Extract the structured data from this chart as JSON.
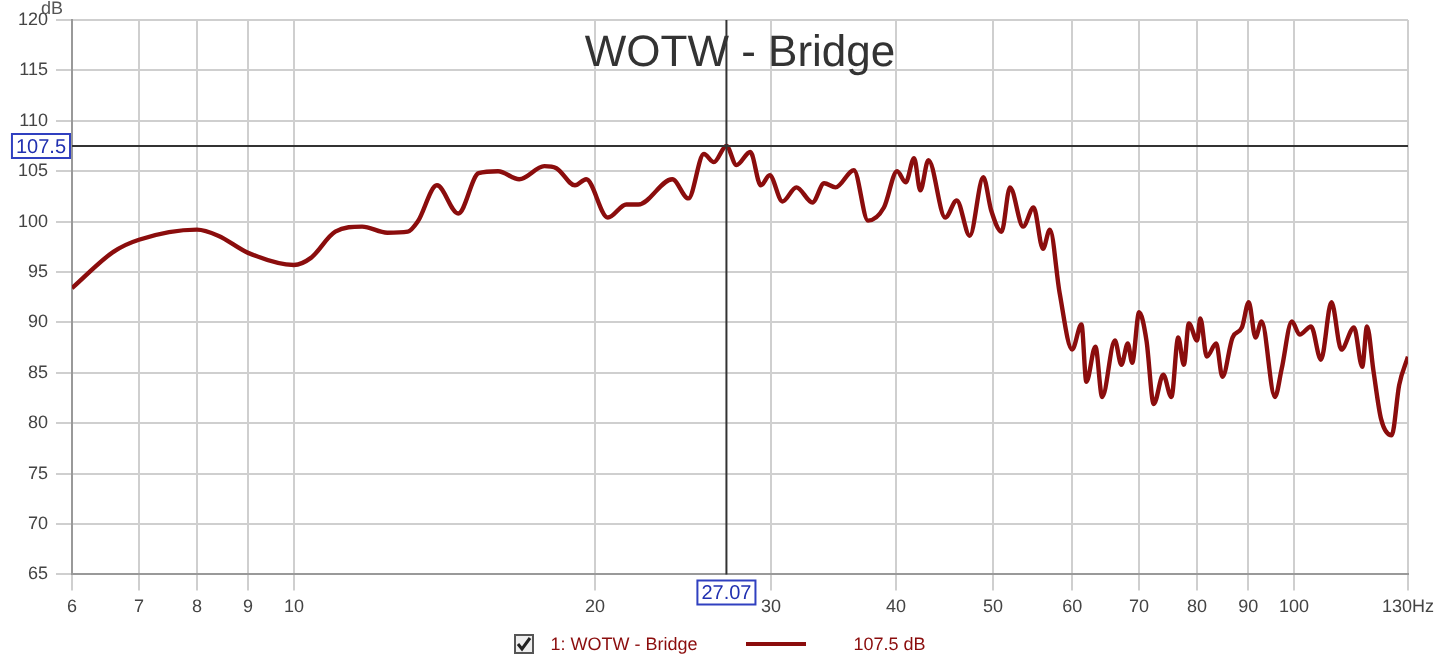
{
  "chart_data": {
    "type": "line",
    "title": "WOTW - Bridge",
    "ylabel": "dB",
    "x": [
      6,
      6.6,
      7.0,
      8.0,
      8.4,
      9.0,
      10,
      10.4,
      11.0,
      11.7,
      12.4,
      13.0,
      13.3,
      13.9,
      14.6,
      15.3,
      16.0,
      16.8,
      17.8,
      18.3,
      19.1,
      19.6,
      20.6,
      21.5,
      22.1,
      23.9,
      24.8,
      25.7,
      26.3,
      27.07,
      27.7,
      28.6,
      29.3,
      29.9,
      30.8,
      31.8,
      33.0,
      33.9,
      34.8,
      36.3,
      37.5,
      38.9,
      40.1,
      40.9,
      41.7,
      42.3,
      43.1,
      44.8,
      46.0,
      47.4,
      48.9,
      49.8,
      51.0,
      52.0,
      53.6,
      54.9,
      56.1,
      57.0,
      58.3,
      60,
      61.3,
      62.0,
      63.3,
      64.3,
      66.2,
      67.2,
      68.2,
      68.9,
      70,
      71.2,
      72.4,
      74.0,
      75.4,
      76.6,
      77.6,
      78.5,
      80,
      80.6,
      81.8,
      83.6,
      84.8,
      86.8,
      88.7,
      90.1,
      91.5,
      92.8,
      95.7,
      97.2,
      99.5,
      101.3,
      104.0,
      106.4,
      109.0,
      111.5,
      114.8,
      117.0,
      118.3,
      120.1,
      122.2,
      125.2,
      127.4,
      130
    ],
    "series": [
      {
        "name": "1: WOTW - Bridge",
        "color": "#8b0d0d",
        "values": [
          93.4,
          97.0,
          98.2,
          99.2,
          98.6,
          96.9,
          95.7,
          96.4,
          99.0,
          99.5,
          98.9,
          99.0,
          100.0,
          103.6,
          100.8,
          104.8,
          105.0,
          104.2,
          105.5,
          105.3,
          103.6,
          104.2,
          100.4,
          101.7,
          101.7,
          104.2,
          102.3,
          106.7,
          105.9,
          107.5,
          105.6,
          106.9,
          103.6,
          104.6,
          102.0,
          103.4,
          101.9,
          103.8,
          103.4,
          105.1,
          100.1,
          101.4,
          105.0,
          103.9,
          106.3,
          103.1,
          106.1,
          100.4,
          102.1,
          98.6,
          104.4,
          101.1,
          99.0,
          103.4,
          99.5,
          101.4,
          97.3,
          99.2,
          92.9,
          87.3,
          89.8,
          84.1,
          87.6,
          82.6,
          88.2,
          85.8,
          87.9,
          86.0,
          91.0,
          88.2,
          81.9,
          84.8,
          82.6,
          88.5,
          85.8,
          89.9,
          88.2,
          90.4,
          86.6,
          87.9,
          84.6,
          88.5,
          89.5,
          92.0,
          88.5,
          90.1,
          82.6,
          85.4,
          90.1,
          88.8,
          89.6,
          86.3,
          92.0,
          87.3,
          89.5,
          85.6,
          89.6,
          85.1,
          80.4,
          78.8,
          83.8,
          86.6
        ]
      }
    ],
    "log": "x",
    "xlim": [
      6,
      130
    ],
    "xticks": [
      6,
      7,
      8,
      9,
      10,
      20,
      30,
      40,
      50,
      60,
      70,
      80,
      90,
      100,
      {
        "value": 130,
        "label": "130Hz"
      }
    ],
    "ylim": [
      65,
      120
    ],
    "yticks": [
      65,
      70,
      75,
      80,
      85,
      90,
      95,
      100,
      105,
      110,
      115,
      120
    ],
    "grid": true,
    "legend": "bottom",
    "line_style": "solid",
    "marker": "none",
    "ref_lines": [
      {
        "axis": "x",
        "value": 27.07,
        "label": "27.07",
        "color": "#333333"
      },
      {
        "axis": "y",
        "value": 107.5,
        "label": "107.5",
        "color": "#333333"
      }
    ],
    "annotations": [
      "107.5 dB"
    ]
  }
}
